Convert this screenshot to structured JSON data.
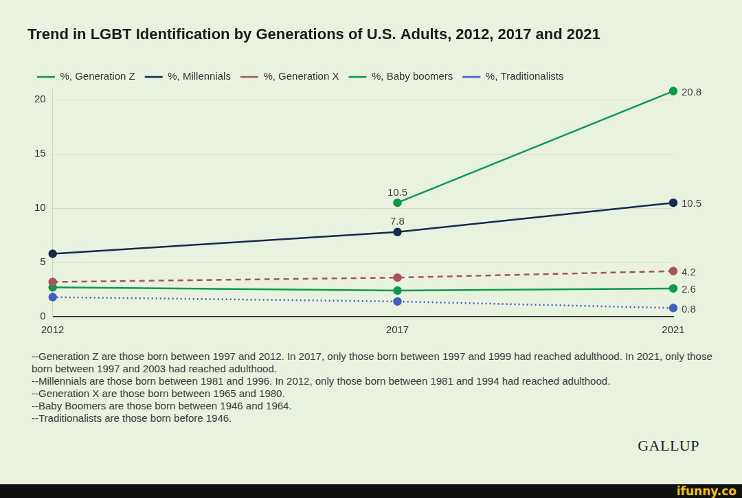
{
  "chart_data": {
    "type": "line",
    "title": "Trend in LGBT Identification by Generations of U.S. Adults, 2012, 2017 and 2021",
    "x": [
      2012,
      2017,
      2021
    ],
    "xlim": [
      2012,
      2021
    ],
    "xticks": [
      2012,
      2017,
      2021
    ],
    "ylim": [
      0,
      21
    ],
    "yticks": [
      0,
      5,
      10,
      15,
      20
    ],
    "grid": true,
    "legend": "top-left",
    "data_labels": true,
    "series": [
      {
        "name": "%, Generation Z",
        "color": "#0d9a48",
        "marker": "circle",
        "line_style": "solid",
        "values": [
          null,
          10.5,
          20.8
        ],
        "value_labels": [
          null,
          "10.5",
          "20.8"
        ]
      },
      {
        "name": "%, Millennials",
        "color": "#152a4e",
        "marker": "circle",
        "line_style": "solid",
        "values": [
          5.8,
          7.8,
          10.5
        ],
        "value_labels": [
          null,
          "7.8",
          "10.5"
        ]
      },
      {
        "name": "%, Generation X",
        "color": "#a8545f",
        "marker": "circle",
        "line_style": "dashed",
        "values": [
          3.2,
          3.6,
          4.2
        ],
        "value_labels": [
          null,
          null,
          "4.2"
        ]
      },
      {
        "name": "%, Baby boomers",
        "color": "#0d9a48",
        "marker": "circle",
        "line_style": "solid",
        "values": [
          2.7,
          2.4,
          2.6
        ],
        "value_labels": [
          null,
          null,
          "2.6"
        ]
      },
      {
        "name": "%, Traditionalists",
        "color": "#3f5fc4",
        "marker": "circle",
        "line_style": "dotted",
        "values": [
          1.8,
          1.4,
          0.8
        ],
        "value_labels": [
          null,
          null,
          "0.8"
        ]
      }
    ],
    "annotations": [
      "--Generation Z are those born between 1997 and 2012. In 2017, only those born between 1997 and 1999 had reached adulthood. In 2021, only those born between 1997 and 2003 had reached adulthood.",
      "--Millennials are those born between 1981 and 1996. In 2012, only those born between 1981 and 1994 had reached adulthood.",
      "--Generation X are those born between 1965 and 1980.",
      "--Baby Boomers are those born between 1946 and 1964.",
      "--Traditionalists are those born before 1946."
    ],
    "source": "GALLUP",
    "watermark": "ifunny.co"
  }
}
